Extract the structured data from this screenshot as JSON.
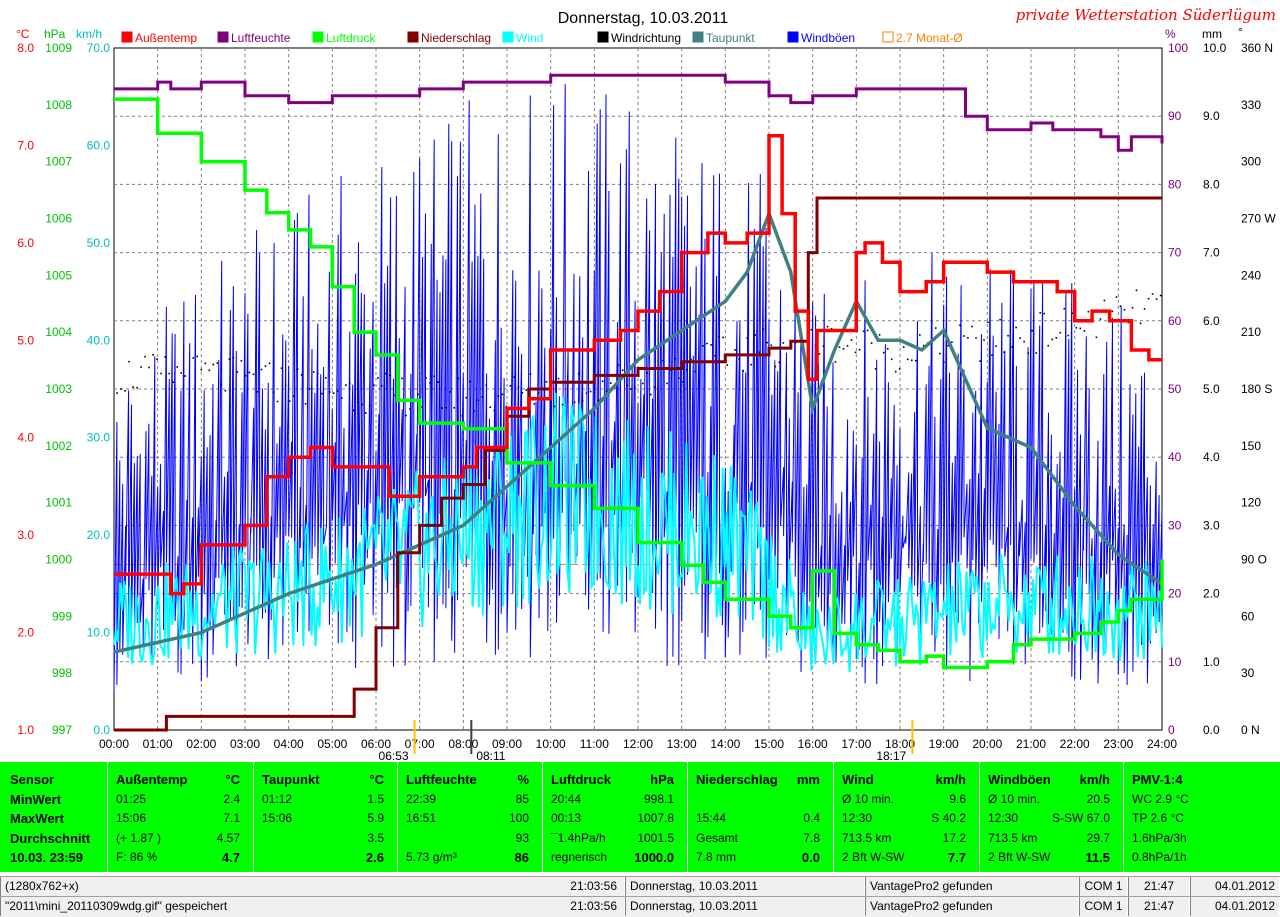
{
  "header": {
    "title": "Donnerstag, 10.03.2011",
    "station": "private Wetterstation Süderlügum"
  },
  "axes": {
    "left_units": [
      "°C",
      "hPa",
      "km/h"
    ],
    "right_units": [
      "%",
      "mm",
      "°"
    ],
    "temp_ticks": [
      "8.0",
      "7.0",
      "6.0",
      "5.0",
      "4.0",
      "3.0",
      "2.0",
      "1.0"
    ],
    "pressure_ticks": [
      "1009",
      "1008",
      "1007",
      "1006",
      "1005",
      "1004",
      "1003",
      "1002",
      "1001",
      "1000",
      "999",
      "998",
      "997"
    ],
    "wind_ticks": [
      "70.0",
      "60.0",
      "50.0",
      "40.0",
      "30.0",
      "20.0",
      "10.0",
      "0.0"
    ],
    "humidity_ticks": [
      "100",
      "90",
      "80",
      "70",
      "60",
      "50",
      "40",
      "30",
      "20",
      "10",
      "0"
    ],
    "rain_ticks": [
      "10.0",
      "9.0",
      "8.0",
      "7.0",
      "6.0",
      "5.0",
      "4.0",
      "3.0",
      "2.0",
      "1.0",
      "0.0"
    ],
    "direction_ticks": [
      "360 N",
      "330",
      "300",
      "270 W",
      "240",
      "210",
      "180 S",
      "150",
      "120",
      "90 O",
      "60",
      "30",
      "0 N"
    ],
    "time_ticks": [
      "00:00",
      "01:00",
      "02:00",
      "03:00",
      "04:00",
      "05:00",
      "06:00",
      "07:00",
      "08:00",
      "09:00",
      "10:00",
      "11:00",
      "12:00",
      "13:00",
      "14:00",
      "15:00",
      "16:00",
      "17:00",
      "18:00",
      "19:00",
      "20:00",
      "21:00",
      "22:00",
      "23:00",
      "24:00"
    ],
    "sunrise": "06:53",
    "moon": "08:11",
    "sunset": "18:17"
  },
  "legend": [
    {
      "label": "Außentemp",
      "color": "#ff0000"
    },
    {
      "label": "Luftfeuchte",
      "color": "#800080"
    },
    {
      "label": "Luftdruck",
      "color": "#00ff00"
    },
    {
      "label": "Niederschlag",
      "color": "#800000"
    },
    {
      "label": "Wind",
      "color": "#00ffff"
    },
    {
      "label": "Windrichtung",
      "color": "#000000"
    },
    {
      "label": "Taupunkt",
      "color": "#408080"
    },
    {
      "label": "Windböen",
      "color": "#0000ff"
    },
    {
      "label": "2.7 Monat-Ø",
      "color": "#ff8000"
    }
  ],
  "chart_data": {
    "type": "line",
    "x_range_hours": [
      0,
      24
    ],
    "monthly_avg_temp": 2.7,
    "series": [
      {
        "name": "Außentemp",
        "axis": "°C",
        "ylim": [
          1,
          8
        ],
        "color": "#ff0000",
        "x": [
          0,
          1,
          1.3,
          1.6,
          2,
          3,
          3.5,
          4,
          4.5,
          5,
          5.8,
          6.3,
          7,
          8,
          8.3,
          9,
          9.5,
          10,
          11,
          11.6,
          12,
          12.5,
          13,
          13.6,
          14,
          14.5,
          15,
          15.3,
          15.6,
          15.9,
          16.1,
          16.5,
          17,
          17.2,
          17.6,
          18,
          18.6,
          19,
          19.6,
          20,
          20.6,
          21,
          21.6,
          22,
          22.4,
          22.8,
          23.3,
          23.7,
          24
        ],
        "y": [
          2.6,
          2.6,
          2.4,
          2.5,
          2.9,
          3.1,
          3.6,
          3.8,
          3.9,
          3.7,
          3.7,
          3.4,
          3.6,
          3.7,
          3.9,
          4.3,
          4.4,
          4.9,
          5.0,
          5.1,
          5.3,
          5.5,
          5.9,
          6.1,
          6.0,
          6.1,
          7.1,
          6.3,
          5.3,
          4.6,
          5.1,
          5.1,
          5.9,
          6.0,
          5.8,
          5.5,
          5.6,
          5.8,
          5.8,
          5.7,
          5.6,
          5.6,
          5.5,
          5.2,
          5.3,
          5.2,
          4.9,
          4.8,
          4.8
        ]
      },
      {
        "name": "Luftfeuchte",
        "axis": "%",
        "ylim": [
          0,
          100
        ],
        "color": "#800080",
        "x": [
          0,
          1,
          1.3,
          2,
          3,
          4,
          5,
          6,
          7,
          8,
          9,
          10,
          11,
          12,
          13,
          14,
          15,
          15.5,
          16,
          17,
          18,
          19,
          19.5,
          20,
          20.6,
          21,
          21.5,
          22,
          22.6,
          23,
          23.3,
          24
        ],
        "y": [
          94,
          95,
          94,
          95,
          93,
          92,
          93,
          93,
          94,
          95,
          95,
          96,
          96,
          96,
          96,
          95,
          93,
          92,
          93,
          94,
          94,
          94,
          90,
          88,
          88,
          89,
          88,
          88,
          87,
          85,
          87,
          86
        ]
      },
      {
        "name": "Luftdruck",
        "axis": "hPa",
        "ylim": [
          997,
          1009
        ],
        "color": "#00ff00",
        "x": [
          0,
          1,
          2,
          3,
          3.5,
          4,
          4.5,
          5,
          5.5,
          6,
          6.5,
          7,
          8,
          9,
          10,
          11,
          12,
          13,
          13.5,
          14,
          15,
          15.5,
          16,
          16.5,
          17,
          17.5,
          18,
          18.6,
          19,
          19.6,
          20,
          20.6,
          21,
          21.6,
          22,
          22.6,
          23,
          23.3,
          24
        ],
        "y": [
          1008.1,
          1007.5,
          1007.0,
          1006.5,
          1006.1,
          1005.8,
          1005.5,
          1004.8,
          1004.0,
          1003.6,
          1002.8,
          1002.4,
          1002.3,
          1001.7,
          1001.3,
          1000.9,
          1000.3,
          999.9,
          999.6,
          999.3,
          999.0,
          998.8,
          999.8,
          998.7,
          998.5,
          998.4,
          998.2,
          998.3,
          998.1,
          998.1,
          998.2,
          998.5,
          998.6,
          998.6,
          998.7,
          998.9,
          999.1,
          999.3,
          1000.0
        ]
      },
      {
        "name": "Niederschlag",
        "axis": "mm",
        "ylim": [
          0,
          10
        ],
        "color": "#800000",
        "x": [
          0,
          1.2,
          2,
          3,
          4,
          5,
          5.5,
          6,
          6.5,
          7,
          7.5,
          8,
          8.5,
          9,
          9.5,
          10,
          11,
          12,
          13,
          14,
          15,
          15.5,
          15.9,
          16.1,
          24
        ],
        "y": [
          0.0,
          0.2,
          0.2,
          0.2,
          0.2,
          0.2,
          0.6,
          1.5,
          2.6,
          3.0,
          3.4,
          3.6,
          4.1,
          4.6,
          5.0,
          5.1,
          5.2,
          5.3,
          5.4,
          5.5,
          5.6,
          5.7,
          7.0,
          7.8,
          7.8
        ]
      },
      {
        "name": "Wind",
        "axis": "km/h",
        "ylim": [
          0,
          70
        ],
        "color": "#00ffff",
        "x": [
          0,
          2,
          4,
          6,
          8,
          10,
          12,
          14,
          15,
          16,
          17,
          18,
          19,
          20,
          22,
          24
        ],
        "y": [
          11.0,
          12.5,
          14.0,
          17.0,
          20.0,
          24.0,
          22.0,
          20.0,
          15.0,
          9.0,
          10.5,
          11.0,
          12.0,
          12.5,
          13.0,
          12.0
        ]
      },
      {
        "name": "Windböen",
        "axis": "km/h",
        "ylim": [
          0,
          70
        ],
        "color": "#0000ff",
        "x": [
          0,
          2,
          4,
          6,
          8,
          10,
          12,
          14,
          15,
          16,
          17,
          18,
          19,
          20,
          22,
          24
        ],
        "y": [
          25,
          32,
          36,
          40,
          43,
          45,
          44,
          40,
          38,
          30,
          31,
          32,
          33,
          33,
          31,
          28
        ]
      },
      {
        "name": "Taupunkt",
        "axis": "°C",
        "ylim": [
          1,
          8
        ],
        "color": "#408080",
        "x": [
          0,
          2,
          4,
          6,
          8,
          9,
          10,
          11,
          12,
          13,
          14,
          14.5,
          15,
          15.5,
          16,
          16.5,
          17,
          17.5,
          18,
          18.5,
          19,
          19.5,
          20,
          21,
          22,
          23,
          24
        ],
        "y": [
          1.8,
          2.0,
          2.4,
          2.7,
          3.1,
          3.5,
          3.9,
          4.3,
          4.8,
          5.1,
          5.4,
          5.7,
          6.3,
          5.7,
          4.3,
          4.9,
          5.4,
          5.0,
          5.0,
          4.9,
          5.1,
          4.6,
          4.1,
          3.9,
          3.3,
          2.8,
          2.5
        ]
      },
      {
        "name": "Windrichtung",
        "axis": "°",
        "ylim": [
          0,
          360
        ],
        "color": "#000000",
        "x": [
          0,
          2,
          4,
          6,
          8,
          10,
          12,
          14,
          16,
          18,
          20,
          22,
          24
        ],
        "y": [
          188,
          188,
          183,
          178,
          176,
          180,
          186,
          198,
          207,
          200,
          205,
          214,
          225
        ]
      }
    ]
  },
  "stats_table": {
    "row_labels": [
      "Sensor",
      "MinWert",
      "MaxWert",
      "Durchschnitt",
      "10.03. 23:59"
    ],
    "columns": [
      {
        "title": "Außentemp",
        "unit": "°C",
        "rows": [
          [
            "01:25",
            "2.4"
          ],
          [
            "15:06",
            "7.1"
          ],
          [
            "(+ 1.87 )",
            "4.57"
          ],
          [
            "F: 86 %",
            "4.7"
          ]
        ]
      },
      {
        "title": "Taupunkt",
        "unit": "°C",
        "rows": [
          [
            "01:12",
            "1.5"
          ],
          [
            "15:06",
            "5.9"
          ],
          [
            "",
            "3.5"
          ],
          [
            "",
            "2.6"
          ]
        ]
      },
      {
        "title": "Luftfeuchte",
        "unit": "%",
        "rows": [
          [
            "22:39",
            "85"
          ],
          [
            "16:51",
            "100"
          ],
          [
            "",
            "93"
          ],
          [
            "5.73 g/m³",
            "86"
          ]
        ]
      },
      {
        "title": "Luftdruck",
        "unit": "hPa",
        "rows": [
          [
            "20:44",
            "998.1"
          ],
          [
            "00:13",
            "1007.8"
          ],
          [
            "¯1.4hPa/h",
            "1001.5"
          ],
          [
            "regnerisch",
            "1000.0"
          ]
        ]
      },
      {
        "title": "Niederschlag",
        "unit": "mm",
        "rows": [
          [
            "",
            ""
          ],
          [
            "15:44",
            "0.4"
          ],
          [
            "Gesamt",
            "7.8"
          ],
          [
            "7.8 mm",
            "0.0"
          ]
        ]
      },
      {
        "title": "Wind",
        "unit": "km/h",
        "rows": [
          [
            "Ø 10 min.",
            "9.6"
          ],
          [
            "12:30",
            "S 40.2"
          ],
          [
            "713.5 km",
            "17.2"
          ],
          [
            "2 Bft W-SW",
            "7.7"
          ]
        ]
      },
      {
        "title": "Windböen",
        "unit": "km/h",
        "rows": [
          [
            "Ø 10 min.",
            "20.5"
          ],
          [
            "12:30",
            "S-SW 67.0"
          ],
          [
            "713.5 km",
            "29.7"
          ],
          [
            "2 Bft W-SW",
            "11.5"
          ]
        ]
      },
      {
        "title": "PMV-1:4",
        "unit": "",
        "rows": [
          [
            "WC 2.9 °C",
            ""
          ],
          [
            "TP 2.6 °C",
            ""
          ],
          [
            "1.6hPa/3h",
            ""
          ],
          [
            "0.8hPa/1h",
            ""
          ]
        ]
      }
    ]
  },
  "status_bar": [
    [
      "(1280x762+x)",
      "21:03:56",
      "Donnerstag, 10.03.2011",
      "VantagePro2 gefunden",
      "COM 1",
      "21:47",
      "04.01.2012"
    ],
    [
      "\"2011\\mini_20110309wdg.gif\" gespeichert",
      "21:03:56",
      "Donnerstag, 10.03.2011",
      "VantagePro2 gefunden",
      "COM 1",
      "21:47",
      "04.01.2012"
    ]
  ]
}
